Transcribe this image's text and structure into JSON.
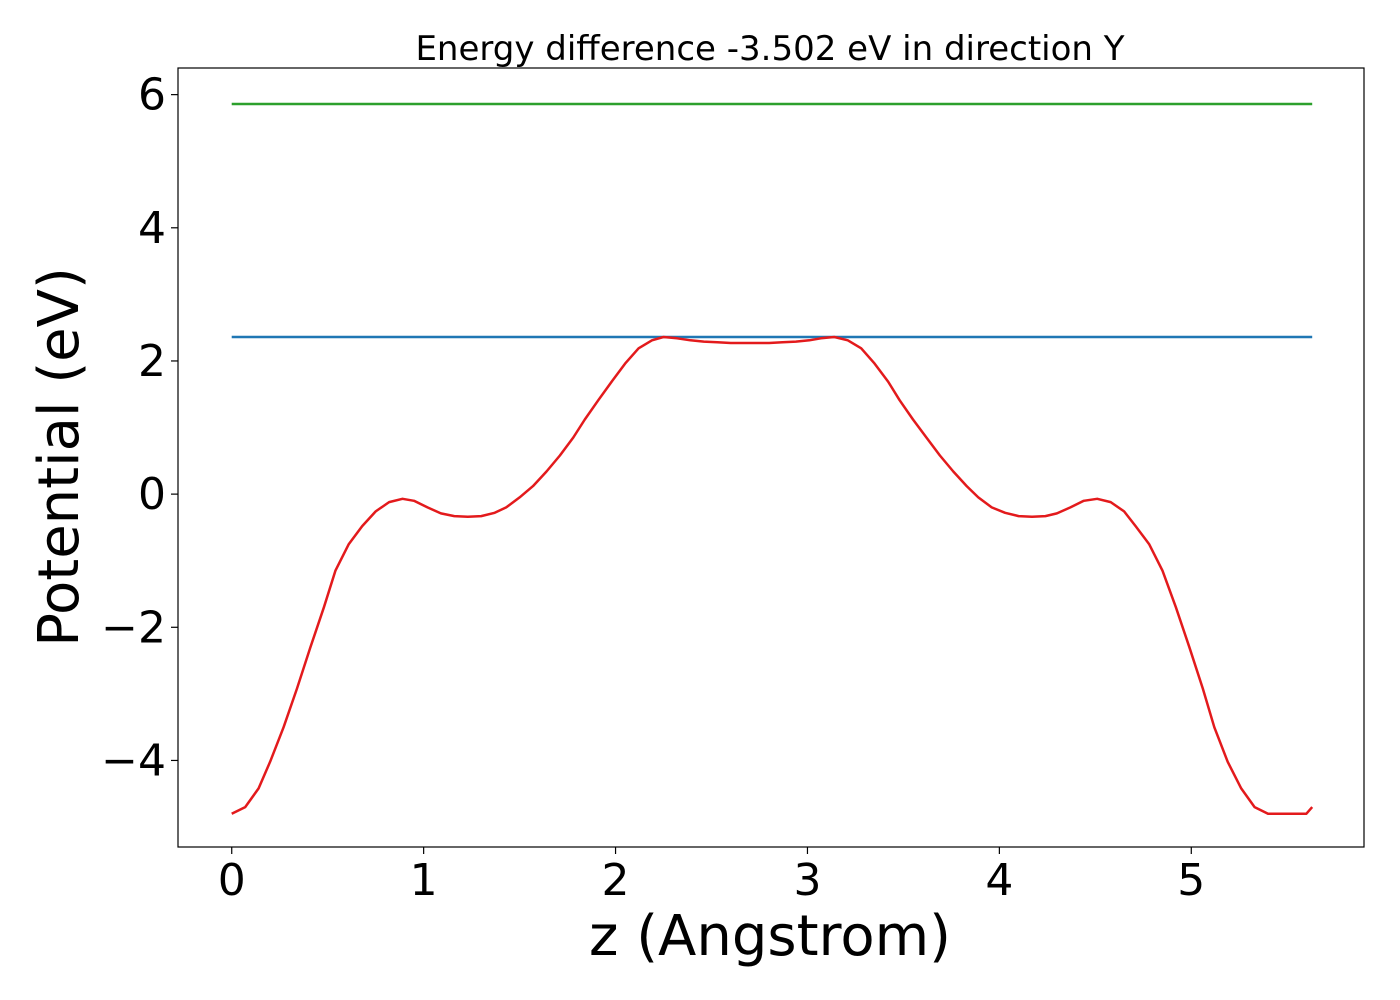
{
  "chart_data": {
    "type": "line",
    "title": "Energy difference -3.502 eV in direction Y",
    "xlabel": "z (Angstrom)",
    "ylabel": "Potential (eV)",
    "xlim": [
      -0.28,
      5.9
    ],
    "ylim": [
      -5.3,
      6.4
    ],
    "xticks": [
      0,
      1,
      2,
      3,
      4,
      5
    ],
    "xtick_labels": [
      "0",
      "1",
      "2",
      "3",
      "4",
      "5"
    ],
    "yticks": [
      -4,
      -2,
      0,
      2,
      4,
      6
    ],
    "ytick_labels": [
      "−4",
      "−2",
      "0",
      "2",
      "4",
      "6"
    ],
    "grid": false,
    "series": [
      {
        "color": "#2ca02c",
        "x": [
          0,
          5.63
        ],
        "y": [
          5.86,
          5.86
        ]
      },
      {
        "color": "#1f77b4",
        "x": [
          0,
          5.63
        ],
        "y": [
          2.36,
          2.36
        ]
      },
      {
        "color": "#e31a1c",
        "x": [
          0,
          0.07,
          0.14,
          0.2,
          0.27,
          0.34,
          0.41,
          0.48,
          0.54,
          0.61,
          0.68,
          0.75,
          0.82,
          0.89,
          0.95,
          1.02,
          1.09,
          1.16,
          1.23,
          1.3,
          1.37,
          1.43,
          1.5,
          1.57,
          1.64,
          1.71,
          1.78,
          1.84,
          1.91,
          1.98,
          2.05,
          2.12,
          2.19,
          2.25,
          2.32,
          2.39,
          2.46,
          2.53,
          2.6,
          2.66,
          2.73,
          2.8,
          2.87,
          2.94,
          3.01,
          3.07,
          3.14,
          3.21,
          3.28,
          3.35,
          3.42,
          3.48,
          3.55,
          3.62,
          3.69,
          3.76,
          3.83,
          3.89,
          3.96,
          4.03,
          4.1,
          4.17,
          4.24,
          4.3,
          4.37,
          4.44,
          4.51,
          4.58,
          4.65,
          4.71,
          4.78,
          4.85,
          4.92,
          4.99,
          5.06,
          5.12,
          5.19,
          5.26,
          5.33,
          5.4,
          5.47,
          5.53,
          5.6,
          5.63
        ],
        "y": [
          -4.8,
          -4.7,
          -4.42,
          -4.02,
          -3.5,
          -2.92,
          -2.3,
          -1.7,
          -1.15,
          -0.75,
          -0.48,
          -0.26,
          -0.12,
          -0.07,
          -0.1,
          -0.2,
          -0.29,
          -0.33,
          -0.34,
          -0.33,
          -0.28,
          -0.2,
          -0.05,
          0.12,
          0.34,
          0.58,
          0.85,
          1.12,
          1.41,
          1.69,
          1.96,
          2.19,
          2.31,
          2.36,
          2.34,
          2.31,
          2.29,
          2.28,
          2.27,
          2.27,
          2.27,
          2.27,
          2.28,
          2.29,
          2.31,
          2.34,
          2.36,
          2.31,
          2.19,
          1.96,
          1.69,
          1.41,
          1.12,
          0.85,
          0.58,
          0.34,
          0.12,
          -0.05,
          -0.2,
          -0.28,
          -0.33,
          -0.34,
          -0.33,
          -0.29,
          -0.2,
          -0.1,
          -0.07,
          -0.12,
          -0.26,
          -0.48,
          -0.75,
          -1.15,
          -1.7,
          -2.3,
          -2.92,
          -3.5,
          -4.02,
          -4.42,
          -4.7,
          -4.8,
          -4.8,
          -4.8,
          -4.8,
          -4.7
        ]
      }
    ]
  }
}
